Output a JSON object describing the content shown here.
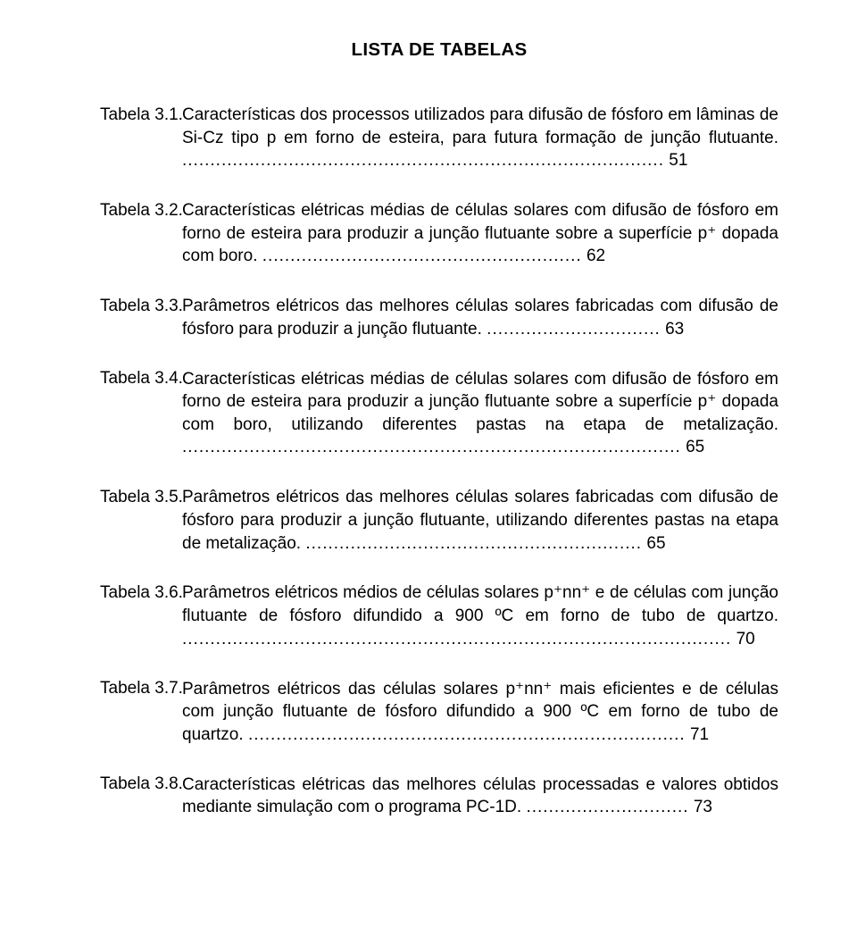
{
  "title": "LISTA DE TABELAS",
  "entries": [
    {
      "label": "Tabela 3.1.",
      "text": "Características dos processos utilizados para difusão de fósforo em lâminas de Si-Cz tipo p em forno de esteira, para futura formação de junção flutuante.",
      "dots": "......................................................................................",
      "page": "51"
    },
    {
      "label": "Tabela 3.2.",
      "text": "Características elétricas médias de células solares com difusão de fósforo em forno de esteira para produzir a junção flutuante sobre a superfície p⁺ dopada com boro.",
      "dots": ".........................................................",
      "page": "62"
    },
    {
      "label": "Tabela 3.3.",
      "text": "Parâmetros elétricos das melhores células solares fabricadas com difusão de fósforo para produzir a junção flutuante.",
      "dots": "...............................",
      "page": "63"
    },
    {
      "label": "Tabela 3.4.",
      "text": "Características elétricas médias de células solares com difusão de fósforo em forno de esteira para produzir a junção flutuante sobre a superfície p⁺ dopada com boro, utilizando diferentes pastas na etapa de metalização.",
      "dots": ".........................................................................................",
      "page": "65"
    },
    {
      "label": "Tabela 3.5.",
      "text": "Parâmetros elétricos das melhores células solares fabricadas com difusão de fósforo para produzir a junção flutuante, utilizando diferentes pastas na etapa de metalização.",
      "dots": "............................................................",
      "page": "65"
    },
    {
      "label": "Tabela 3.6.",
      "text": "Parâmetros elétricos médios de células solares p⁺nn⁺ e de células com junção flutuante de fósforo difundido a 900 ºC em forno de tubo de quartzo.",
      "dots": "..................................................................................................",
      "page": "70"
    },
    {
      "label": "Tabela 3.7.",
      "text": "Parâmetros elétricos das células solares p⁺nn⁺ mais eficientes e de células com junção flutuante de fósforo difundido a 900 ºC em forno de tubo de quartzo.",
      "dots": "..............................................................................",
      "page": "71"
    },
    {
      "label": "Tabela 3.8.",
      "text": "Características elétricas das melhores células processadas e valores obtidos mediante simulação com o programa PC-1D.",
      "dots": ".............................",
      "page": "73"
    }
  ]
}
